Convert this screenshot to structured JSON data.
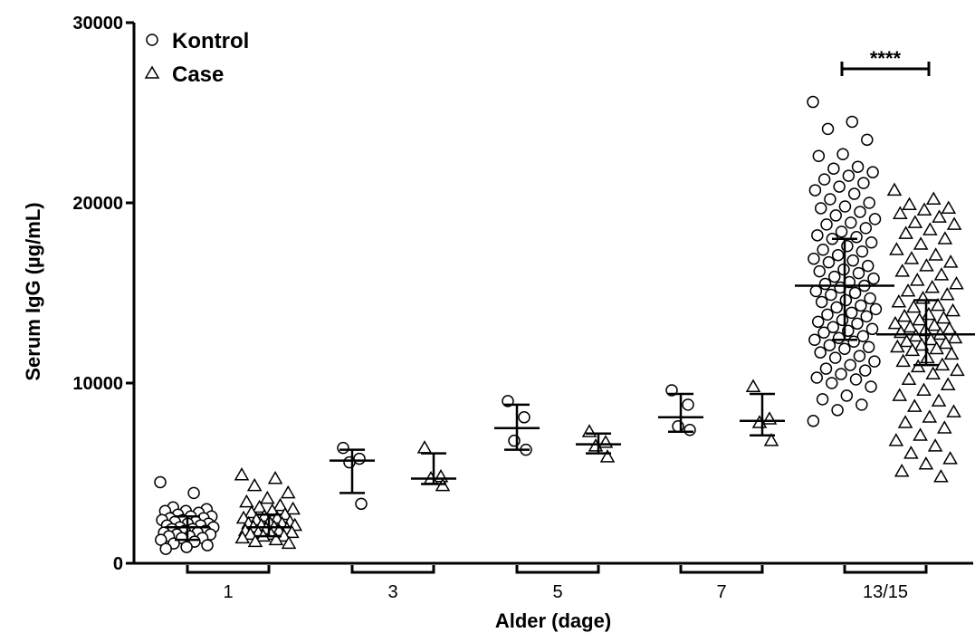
{
  "chart_data": {
    "type": "scatter",
    "title": "",
    "xlabel": "Alder (dage)",
    "ylabel": "Serum IgG (µg/mL)",
    "ylim": [
      0,
      30000
    ],
    "yticks": [
      0,
      10000,
      20000,
      30000
    ],
    "ytick_labels": [
      "0",
      "10000",
      "20000",
      "30000"
    ],
    "categories": [
      "1",
      "3",
      "5",
      "7",
      "13/15"
    ],
    "legend": {
      "position": "top-left",
      "entries": [
        {
          "label": "Kontrol",
          "marker": "circle"
        },
        {
          "label": "Case",
          "marker": "triangle"
        }
      ]
    },
    "significance": [
      {
        "category": "13/15",
        "label": "****"
      }
    ],
    "series": [
      {
        "name": "Kontrol",
        "marker": "circle",
        "groups": [
          {
            "category": "1",
            "mean": 2000,
            "sd_low": 1300,
            "sd_high": 2600,
            "points": [
              4500,
              3900,
              3100,
              3000,
              2900,
              2900,
              2800,
              2700,
              2600,
              2600,
              2500,
              2500,
              2400,
              2400,
              2300,
              2300,
              2200,
              2200,
              2100,
              2100,
              2000,
              2000,
              1900,
              1900,
              1800,
              1800,
              1700,
              1700,
              1600,
              1600,
              1500,
              1500,
              1400,
              1400,
              1300,
              1200,
              1100,
              1000,
              900,
              800
            ]
          },
          {
            "category": "3",
            "mean": 5700,
            "sd_low": 3900,
            "sd_high": 6300,
            "points": [
              6400,
              5800,
              5600,
              3300
            ]
          },
          {
            "category": "5",
            "mean": 7500,
            "sd_low": 6300,
            "sd_high": 8800,
            "points": [
              9000,
              8100,
              6800,
              6300
            ]
          },
          {
            "category": "7",
            "mean": 8100,
            "sd_low": 7300,
            "sd_high": 9400,
            "points": [
              9600,
              8800,
              7600,
              7400
            ]
          },
          {
            "category": "13/15",
            "mean": 15400,
            "sd_low": 12400,
            "sd_high": 18000,
            "points": [
              25600,
              24500,
              24100,
              23500,
              22700,
              22600,
              22000,
              21900,
              21700,
              21500,
              21300,
              21100,
              20900,
              20700,
              20500,
              20200,
              20000,
              19800,
              19700,
              19500,
              19300,
              19100,
              18900,
              18800,
              18600,
              18400,
              18200,
              18100,
              18000,
              17800,
              17600,
              17400,
              17300,
              17100,
              16900,
              16800,
              16700,
              16500,
              16300,
              16200,
              16100,
              15900,
              15800,
              15600,
              15500,
              15400,
              15300,
              15100,
              15000,
              14900,
              14700,
              14600,
              14500,
              14300,
              14200,
              14100,
              13900,
              13800,
              13700,
              13500,
              13400,
              13300,
              13100,
              13000,
              12900,
              12800,
              12600,
              12500,
              12400,
              12300,
              12100,
              12000,
              11900,
              11700,
              11500,
              11400,
              11200,
              11000,
              10800,
              10700,
              10500,
              10300,
              10200,
              10000,
              9800,
              9300,
              9100,
              8800,
              8500,
              7900
            ]
          }
        ]
      },
      {
        "name": "Case",
        "marker": "triangle",
        "groups": [
          {
            "category": "1",
            "mean": 2000,
            "sd_low": 1500,
            "sd_high": 2700,
            "points": [
              4900,
              4700,
              4300,
              3900,
              3600,
              3400,
              3200,
              3100,
              3000,
              2900,
              2800,
              2700,
              2600,
              2500,
              2500,
              2400,
              2300,
              2300,
              2200,
              2200,
              2100,
              2100,
              2000,
              2000,
              1900,
              1900,
              1800,
              1800,
              1700,
              1700,
              1600,
              1600,
              1500,
              1500,
              1400,
              1300,
              1200,
              1100
            ]
          },
          {
            "category": "3",
            "mean": 4700,
            "sd_low": 4400,
            "sd_high": 6100,
            "points": [
              6400,
              4800,
              4700,
              4300
            ]
          },
          {
            "category": "5",
            "mean": 6600,
            "sd_low": 6100,
            "sd_high": 7200,
            "points": [
              7300,
              6700,
              6500,
              5900
            ]
          },
          {
            "category": "7",
            "mean": 7900,
            "sd_low": 7100,
            "sd_high": 9400,
            "points": [
              9800,
              8000,
              7800,
              6800
            ]
          },
          {
            "category": "13/15",
            "mean": 12700,
            "sd_low": 11000,
            "sd_high": 14600,
            "points": [
              20700,
              20200,
              19900,
              19700,
              19600,
              19400,
              19200,
              18900,
              18800,
              18500,
              18300,
              18000,
              17700,
              17400,
              17100,
              16900,
              16700,
              16500,
              16200,
              16000,
              15700,
              15500,
              15300,
              15100,
              14900,
              14700,
              14500,
              14300,
              14200,
              14000,
              13800,
              13700,
              13600,
              13500,
              13300,
              13200,
              13100,
              13000,
              12900,
              12800,
              12700,
              12600,
              12500,
              12400,
              12300,
              12200,
              12100,
              12000,
              11900,
              11800,
              11600,
              11400,
              11200,
              11000,
              10900,
              10700,
              10500,
              10200,
              9900,
              9600,
              9300,
              9000,
              8700,
              8400,
              8100,
              7800,
              7500,
              7100,
              6800,
              6500,
              6100,
              5800,
              5500,
              5100,
              4800
            ]
          }
        ]
      }
    ]
  }
}
